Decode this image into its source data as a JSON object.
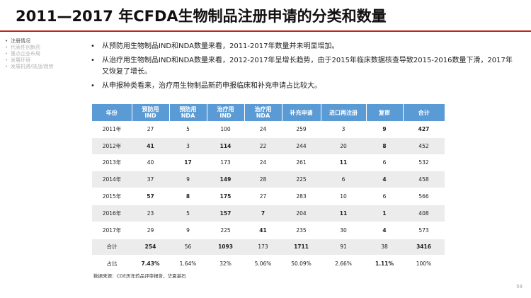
{
  "title": "2011—2017 年CFDA生物制品注册申请的分类和数量",
  "sidebar": {
    "items": [
      {
        "label": "注册情况",
        "active": true
      },
      {
        "label": "代表性创新药",
        "active": false
      },
      {
        "label": "重点企业布局",
        "active": false
      },
      {
        "label": "发展环境",
        "active": false
      },
      {
        "label": "发展机遇/挑战/趋势",
        "active": false
      }
    ]
  },
  "bullets": [
    "从预防用生物制品IND和NDA数量来看，2011-2017年数量并未明显增加。",
    "从治疗用生物制品IND和NDA数量来看，2012-2017年呈增长趋势，由于2015年临床数据核查导致2015-2016数量下滑，2017年又恢复了增长。",
    "从申报种类看来，治疗用生物制品新药申报临床和补充申请占比较大。"
  ],
  "table": {
    "headers": [
      {
        "line1": "年份",
        "line2": ""
      },
      {
        "line1": "预防用",
        "line2": "IND"
      },
      {
        "line1": "预防用",
        "line2": "NDA"
      },
      {
        "line1": "治疗用",
        "line2": "IND"
      },
      {
        "line1": "治疗用",
        "line2": "NDA"
      },
      {
        "line1": "补充申请",
        "line2": ""
      },
      {
        "line1": "进口再注册",
        "line2": ""
      },
      {
        "line1": "复审",
        "line2": ""
      },
      {
        "line1": "合计",
        "line2": ""
      }
    ],
    "rows": [
      [
        "2011年",
        "27",
        "5",
        "100",
        "24",
        "259",
        "3",
        "9",
        "427"
      ],
      [
        "2012年",
        "41",
        "3",
        "114",
        "22",
        "244",
        "20",
        "8",
        "452"
      ],
      [
        "2013年",
        "40",
        "17",
        "173",
        "24",
        "261",
        "11",
        "6",
        "532"
      ],
      [
        "2014年",
        "37",
        "9",
        "149",
        "28",
        "225",
        "6",
        "4",
        "458"
      ],
      [
        "2015年",
        "57",
        "8",
        "175",
        "27",
        "283",
        "10",
        "6",
        "566"
      ],
      [
        "2016年",
        "23",
        "5",
        "157",
        "7",
        "204",
        "11",
        "1",
        "408"
      ],
      [
        "2017年",
        "29",
        "9",
        "225",
        "41",
        "235",
        "30",
        "4",
        "573"
      ],
      [
        "合计",
        "254",
        "56",
        "1093",
        "173",
        "1711",
        "91",
        "38",
        "3416"
      ],
      [
        "占比",
        "7.43%",
        "1.64%",
        "32%",
        "5.06%",
        "50.09%",
        "2.66%",
        "1.11%",
        "100%"
      ]
    ],
    "bold_cells": [
      [
        0,
        0,
        0,
        0,
        0,
        0,
        0,
        1,
        1
      ],
      [
        0,
        1,
        0,
        1,
        0,
        0,
        0,
        1,
        0
      ],
      [
        0,
        0,
        1,
        0,
        0,
        0,
        1,
        0,
        0
      ],
      [
        0,
        0,
        0,
        1,
        0,
        0,
        0,
        1,
        0
      ],
      [
        0,
        1,
        1,
        1,
        0,
        0,
        0,
        0,
        0
      ],
      [
        0,
        0,
        0,
        1,
        1,
        0,
        1,
        1,
        0
      ],
      [
        0,
        0,
        0,
        0,
        1,
        0,
        0,
        1,
        0
      ],
      [
        0,
        1,
        0,
        1,
        0,
        1,
        0,
        0,
        1
      ],
      [
        0,
        1,
        0,
        0,
        0,
        0,
        0,
        1,
        0
      ]
    ]
  },
  "source": "数据来源：CDE历年药品评审报告，华夏基石",
  "page_number": "59",
  "colors": {
    "accent_rule": "#c0281e",
    "table_header": "#5b9bd5",
    "stripe": "#ececec"
  }
}
